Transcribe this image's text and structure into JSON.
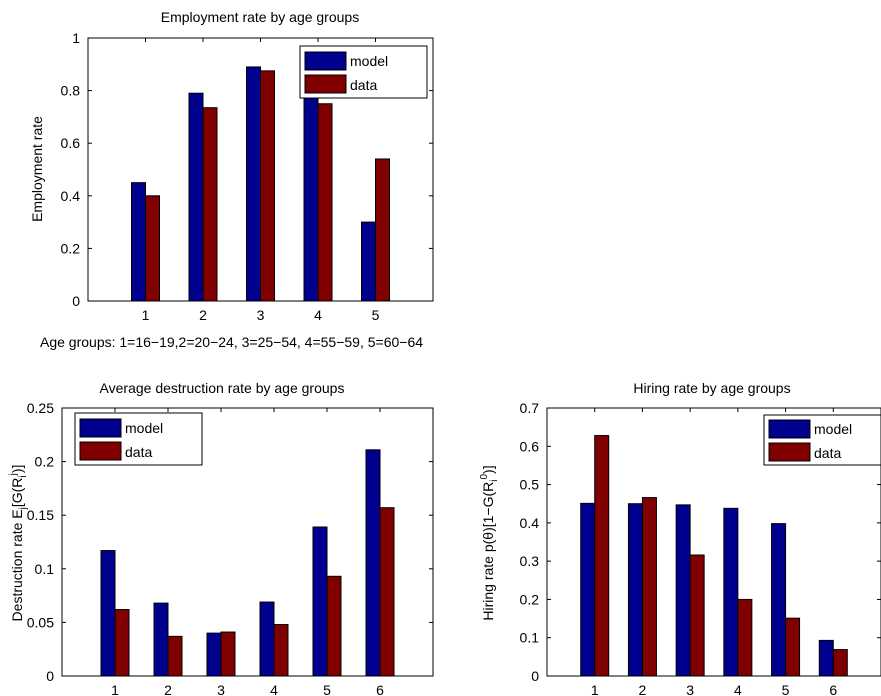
{
  "chart_data": [
    {
      "type": "bar",
      "title": "Employment rate by age groups",
      "ylabel": "Employment rate",
      "xlabel": "Age groups: 1=16−19,2=20−24, 3=25−54, 4=55−59, 5=60−64",
      "categories": [
        "1",
        "2",
        "3",
        "4",
        "5"
      ],
      "xlim": [
        0,
        6
      ],
      "ylim": [
        0,
        1
      ],
      "yticks": [
        "0",
        "0.2",
        "0.4",
        "0.6",
        "0.8",
        "1"
      ],
      "ytick_values": [
        0,
        0.2,
        0.4,
        0.6,
        0.8,
        1
      ],
      "legend_position": "top-right",
      "series": [
        {
          "name": "model",
          "color": "#00008f",
          "values": [
            0.45,
            0.79,
            0.89,
            0.79,
            0.3
          ]
        },
        {
          "name": "data",
          "color": "#800000",
          "values": [
            0.4,
            0.735,
            0.875,
            0.75,
            0.54
          ]
        }
      ]
    },
    {
      "type": "bar",
      "title": "Average destruction rate by age groups",
      "ylabel": "Destruction rate E_j[G(R_i^j)]",
      "xlabel": "",
      "categories": [
        "1",
        "2",
        "3",
        "4",
        "5",
        "6"
      ],
      "xlim": [
        0,
        7
      ],
      "ylim": [
        0,
        0.25
      ],
      "yticks": [
        "0",
        "0.05",
        "0.1",
        "0.15",
        "0.2",
        "0.25"
      ],
      "ytick_values": [
        0,
        0.05,
        0.1,
        0.15,
        0.2,
        0.25
      ],
      "legend_position": "top-left",
      "series": [
        {
          "name": "model",
          "color": "#00008f",
          "values": [
            0.117,
            0.068,
            0.04,
            0.069,
            0.139,
            0.211
          ]
        },
        {
          "name": "data",
          "color": "#800000",
          "values": [
            0.062,
            0.037,
            0.041,
            0.048,
            0.093,
            0.157
          ]
        }
      ]
    },
    {
      "type": "bar",
      "title": "Hiring rate by age groups",
      "ylabel": "Hiring rate p(θ)[1−G(R_i^0)]",
      "xlabel": "",
      "categories": [
        "1",
        "2",
        "3",
        "4",
        "5",
        "6"
      ],
      "xlim": [
        0,
        7
      ],
      "ylim": [
        0,
        0.7
      ],
      "yticks": [
        "0",
        "0.1",
        "0.2",
        "0.3",
        "0.4",
        "0.5",
        "0.6",
        "0.7"
      ],
      "ytick_values": [
        0,
        0.1,
        0.2,
        0.3,
        0.4,
        0.5,
        0.6,
        0.7
      ],
      "legend_position": "top-right",
      "series": [
        {
          "name": "model",
          "color": "#00008f",
          "values": [
            0.451,
            0.45,
            0.447,
            0.438,
            0.398,
            0.093
          ]
        },
        {
          "name": "data",
          "color": "#800000",
          "values": [
            0.628,
            0.466,
            0.316,
            0.2,
            0.151,
            0.069
          ]
        }
      ]
    }
  ]
}
